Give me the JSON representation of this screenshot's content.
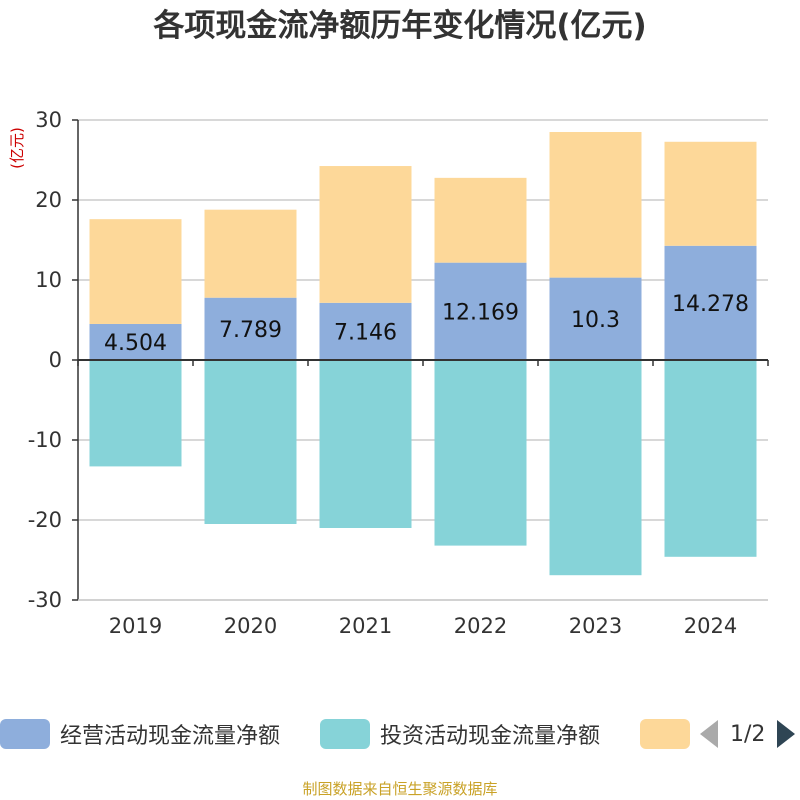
{
  "chart_data": {
    "type": "bar",
    "title": "各项现金流净额历年变化情况(亿元)",
    "ylabel": "(亿元)",
    "xlabel": "",
    "ylim": [
      -30,
      30
    ],
    "yticks": [
      30,
      20,
      10,
      0,
      -10,
      -20,
      -30
    ],
    "categories": [
      "2019",
      "2020",
      "2021",
      "2022",
      "2023",
      "2024"
    ],
    "series": [
      {
        "name": "经营活动现金流量净额",
        "values": [
          4.504,
          7.789,
          7.146,
          12.169,
          10.3,
          14.278
        ],
        "labels": [
          "4.504",
          "7.789",
          "7.146",
          "12.169",
          "10.3",
          "14.278"
        ]
      },
      {
        "name": "投资活动现金流量净额",
        "values": [
          -13.3,
          -20.5,
          -21.0,
          -23.2,
          -26.9,
          -24.6
        ]
      },
      {
        "name": "",
        "values": [
          13.1,
          11.0,
          17.1,
          10.6,
          18.2,
          13.0
        ]
      }
    ],
    "stacked": true,
    "grid": true,
    "legend_position": "bottom",
    "legend_page": "1/2"
  },
  "colors": {
    "series": [
      "#8eaedc",
      "#86d3d8",
      "#fdd899"
    ],
    "grid": "#cccccc",
    "axis": "#333333"
  },
  "source": "制图数据来自恒生聚源数据库"
}
